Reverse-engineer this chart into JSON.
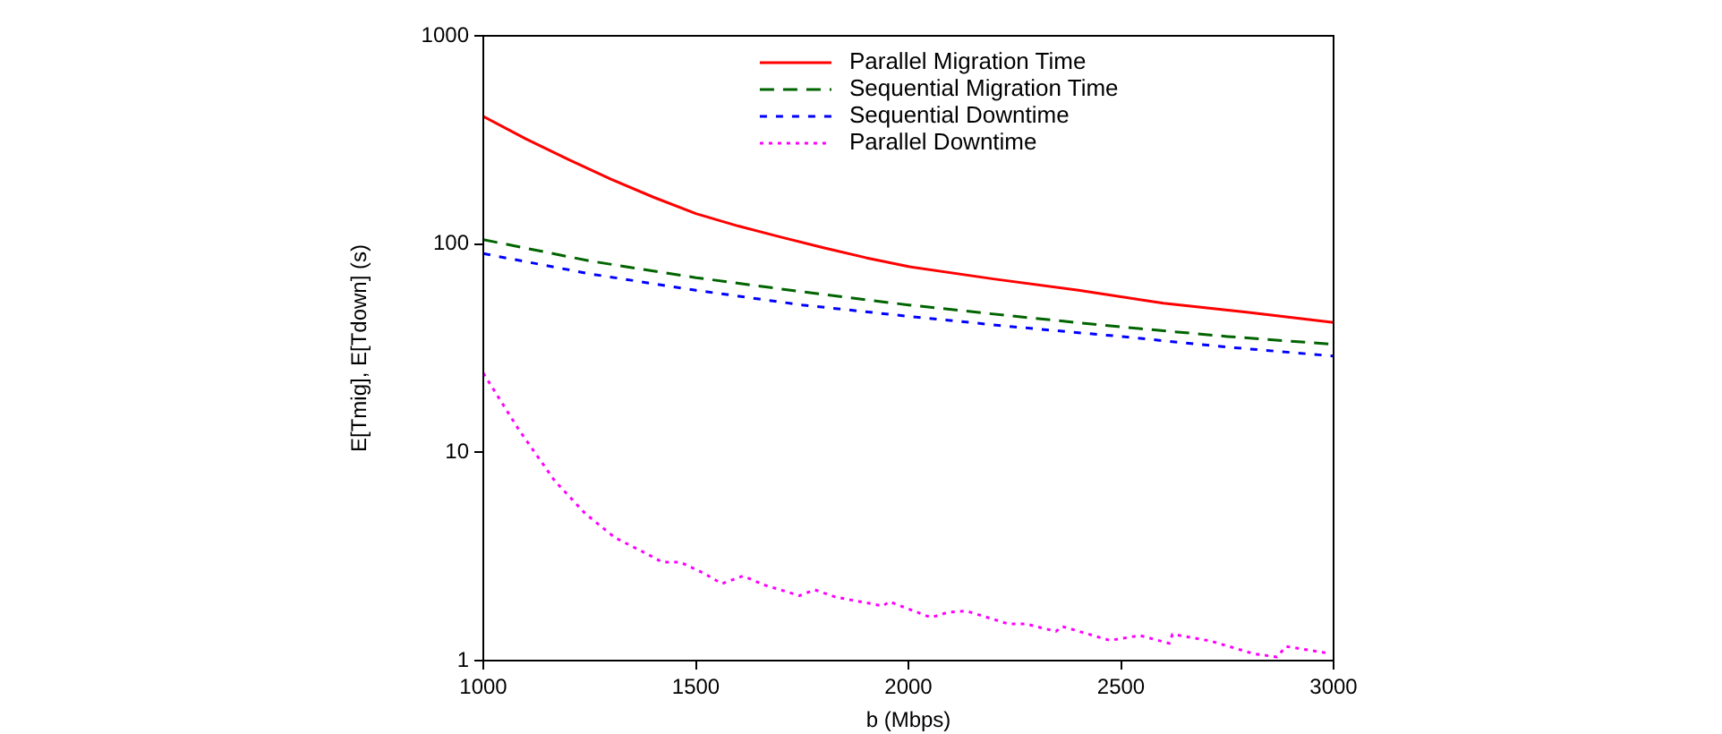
{
  "chart_data": {
    "type": "line",
    "xlabel": "b (Mbps)",
    "ylabel": "E[Tmig], E[Tdown] (s)",
    "xlim": [
      1000,
      3000
    ],
    "xticks": [
      1000,
      1500,
      2000,
      2500,
      3000
    ],
    "ylim": [
      1,
      1000
    ],
    "yticks": [
      1,
      10,
      100,
      1000
    ],
    "log": "y",
    "grid": false,
    "legend": "top right",
    "marker": "none",
    "series": [
      {
        "name": "Parallel Migration Time",
        "color": "#ff0000",
        "line_style": "solid",
        "x": [
          1000,
          1100,
          1200,
          1300,
          1400,
          1500,
          1600,
          1700,
          1800,
          1900,
          2000,
          2200,
          2400,
          2600,
          2800,
          3000
        ],
        "values": [
          410,
          320,
          255,
          205,
          168,
          140,
          122,
          108,
          96,
          86,
          78,
          68,
          60,
          52,
          47,
          42
        ]
      },
      {
        "name": "Sequential Migration Time",
        "color": "#006400",
        "line_style": "dashed",
        "x": [
          1000,
          1250,
          1500,
          1750,
          2000,
          2250,
          2500,
          2750,
          3000
        ],
        "values": [
          105,
          83,
          69,
          59,
          51,
          45,
          40,
          36,
          33
        ]
      },
      {
        "name": "Sequential Downtime",
        "color": "#0000ff",
        "line_style": "dashed",
        "x": [
          1000,
          1250,
          1500,
          1750,
          2000,
          2250,
          2500,
          2750,
          3000
        ],
        "values": [
          90,
          72,
          60,
          51,
          45,
          40,
          36,
          32,
          29
        ]
      },
      {
        "name": "Parallel Downtime",
        "color": "#ff00ff",
        "line_style": "dotted",
        "x": [
          1000,
          1084,
          1168,
          1239,
          1309,
          1379,
          1421,
          1463,
          1518,
          1561,
          1611,
          1660,
          1744,
          1779,
          1828,
          1940,
          1955,
          2053,
          2095,
          2137,
          2235,
          2277,
          2347,
          2361,
          2474,
          2544,
          2614,
          2621,
          2712,
          2811,
          2867,
          2888,
          2993
        ],
        "values": [
          24,
          12.8,
          7.3,
          5.1,
          3.9,
          3.3,
          2.97,
          2.97,
          2.63,
          2.34,
          2.55,
          2.31,
          2.05,
          2.19,
          2.02,
          1.83,
          1.92,
          1.61,
          1.71,
          1.73,
          1.5,
          1.5,
          1.38,
          1.46,
          1.25,
          1.32,
          1.21,
          1.34,
          1.24,
          1.08,
          1.04,
          1.17,
          1.08
        ]
      }
    ]
  }
}
